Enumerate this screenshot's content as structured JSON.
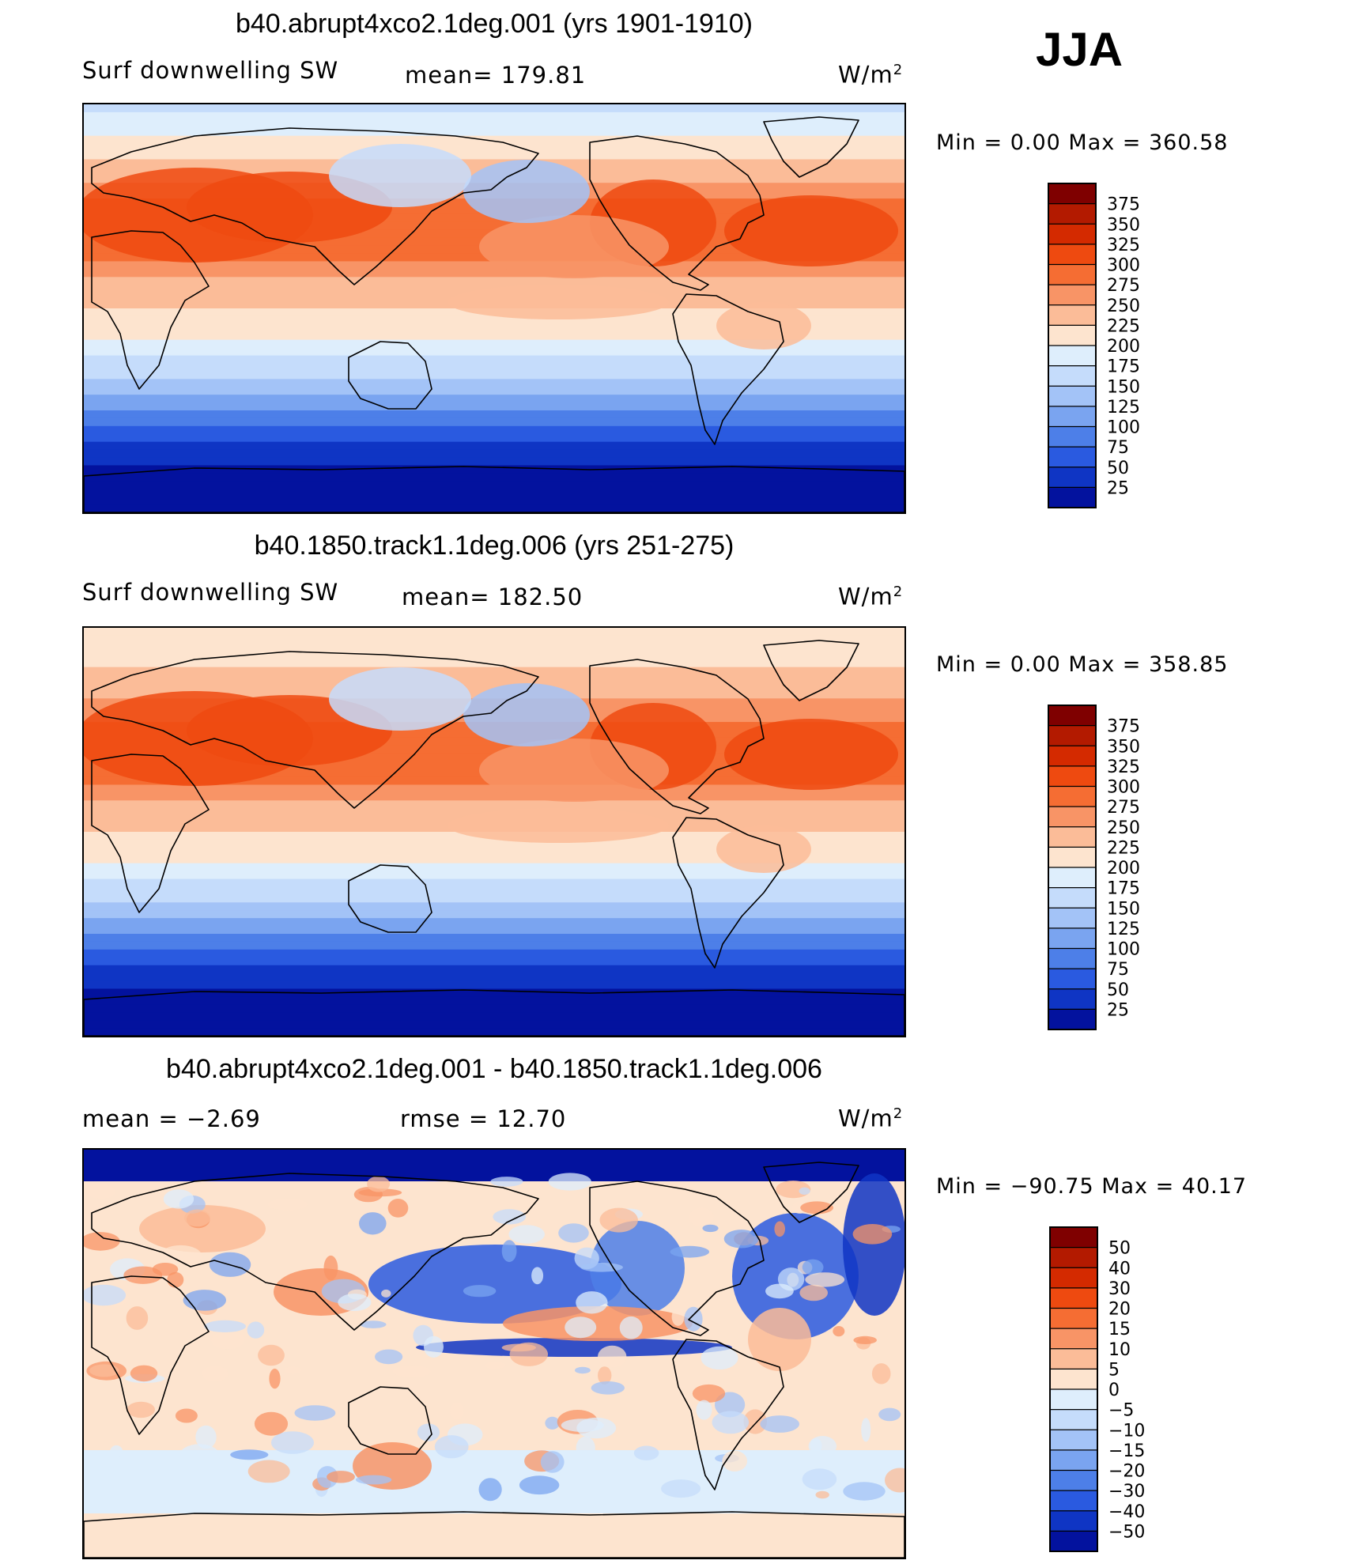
{
  "season": "JJA",
  "units": "W/m",
  "units_exp": "2",
  "panels": [
    {
      "title": "b40.abrupt4xco2.1deg.001 (yrs 1901-1910)",
      "left_label": "Surf downwelling SW",
      "stat_label": "mean= 179.81",
      "minmax": "Min =    0.00 Max = 360.58",
      "scale": "abs"
    },
    {
      "title": "b40.1850.track1.1deg.006 (yrs 251-275)",
      "left_label": "Surf downwelling SW",
      "stat_label": "mean= 182.50",
      "minmax": "Min =    0.00 Max = 358.85",
      "scale": "abs"
    },
    {
      "title": "b40.abrupt4xco2.1deg.001 - b40.1850.track1.1deg.006",
      "left_label": "mean =   −2.69",
      "stat_label": "rmse =   12.70",
      "minmax": "Min = −90.75 Max =   40.17",
      "scale": "diff"
    }
  ],
  "colorbars": {
    "abs": {
      "labels": [
        "375",
        "350",
        "325",
        "300",
        "275",
        "250",
        "225",
        "200",
        "175",
        "150",
        "125",
        "100",
        "75",
        "50",
        "25"
      ],
      "colors": [
        "#7f0000",
        "#b31a00",
        "#d42a00",
        "#ee4a10",
        "#f56d33",
        "#f89466",
        "#fbbc98",
        "#fde4cf",
        "#deeefc",
        "#c5dcfb",
        "#a3c3f7",
        "#7aa4f0",
        "#4d7fe8",
        "#2a5ae0",
        "#0f35c4",
        "#03129e"
      ]
    },
    "diff": {
      "labels": [
        "50",
        "40",
        "30",
        "20",
        "15",
        "10",
        "5",
        "0",
        "−5",
        "−10",
        "−15",
        "−20",
        "−30",
        "−40",
        "−50"
      ],
      "colors": [
        "#7f0000",
        "#b31a00",
        "#d42a00",
        "#ee4a10",
        "#f56d33",
        "#f89466",
        "#fbbc98",
        "#fde4cf",
        "#deeefc",
        "#c5dcfb",
        "#a3c3f7",
        "#7aa4f0",
        "#4d7fe8",
        "#2a5ae0",
        "#0f35c4",
        "#03129e"
      ]
    }
  },
  "chart_data": [
    {
      "type": "heatmap",
      "title": "b40.abrupt4xco2.1deg.001 (yrs 1901-1910)",
      "variable": "Surf downwelling SW",
      "units": "W/m^2",
      "mean": 179.81,
      "min": 0.0,
      "max": 360.58,
      "levels": [
        25,
        50,
        75,
        100,
        125,
        150,
        175,
        200,
        225,
        250,
        275,
        300,
        325,
        350,
        375
      ],
      "zonal_mean_profile": {
        "lat": [
          90,
          75,
          60,
          45,
          30,
          15,
          0,
          -15,
          -30,
          -45,
          -60,
          -75,
          -90
        ],
        "value": [
          170,
          205,
          240,
          290,
          300,
          255,
          225,
          195,
          150,
          95,
          50,
          15,
          0
        ]
      }
    },
    {
      "type": "heatmap",
      "title": "b40.1850.track1.1deg.006 (yrs 251-275)",
      "variable": "Surf downwelling SW",
      "units": "W/m^2",
      "mean": 182.5,
      "min": 0.0,
      "max": 358.85,
      "levels": [
        25,
        50,
        75,
        100,
        125,
        150,
        175,
        200,
        225,
        250,
        275,
        300,
        325,
        350,
        375
      ],
      "zonal_mean_profile": {
        "lat": [
          90,
          75,
          60,
          45,
          30,
          15,
          0,
          -15,
          -30,
          -45,
          -60,
          -75,
          -90
        ],
        "value": [
          215,
          220,
          245,
          290,
          300,
          255,
          225,
          195,
          150,
          95,
          50,
          15,
          0
        ]
      }
    },
    {
      "type": "heatmap",
      "title": "b40.abrupt4xco2.1deg.001 - b40.1850.track1.1deg.006",
      "units": "W/m^2",
      "mean": -2.69,
      "rmse": 12.7,
      "min": -90.75,
      "max": 40.17,
      "levels": [
        -50,
        -40,
        -30,
        -20,
        -15,
        -10,
        -5,
        0,
        5,
        10,
        15,
        20,
        30,
        40,
        50
      ]
    }
  ]
}
